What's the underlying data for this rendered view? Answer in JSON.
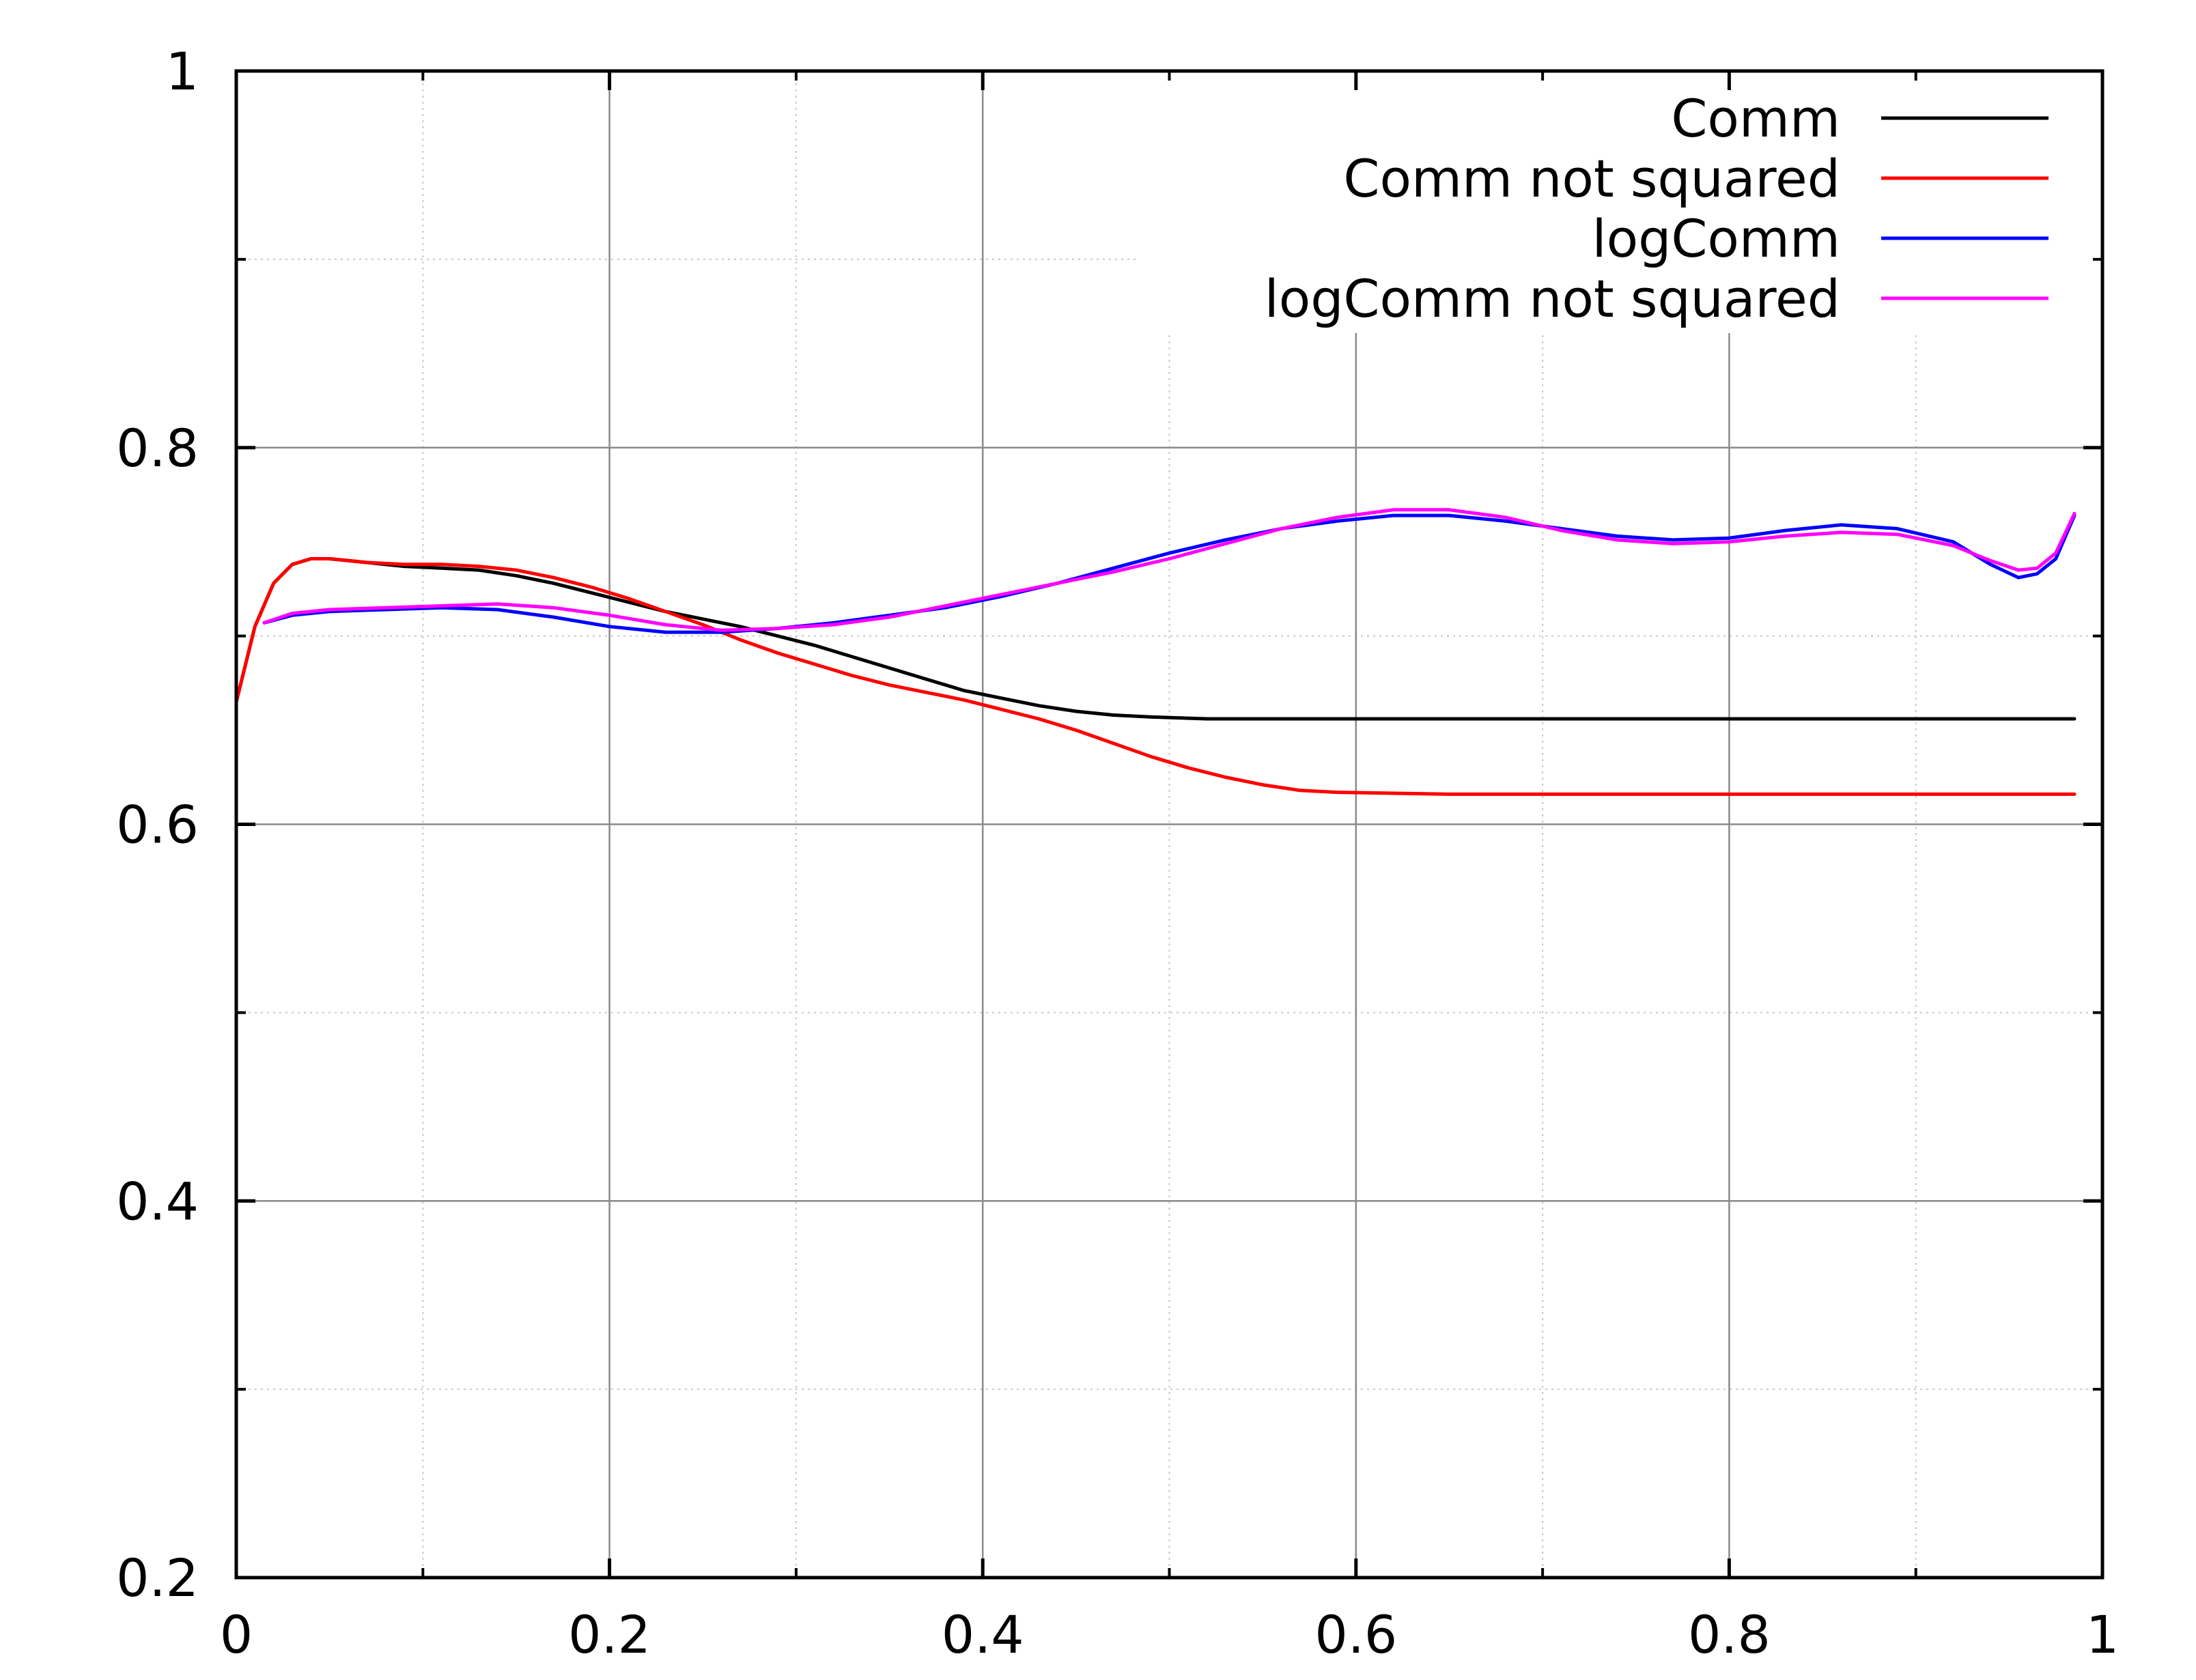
{
  "chart_data": {
    "type": "line",
    "title": "",
    "xlabel": "",
    "ylabel": "",
    "xlim": [
      0,
      1
    ],
    "ylim": [
      0.2,
      1
    ],
    "xticks": [
      0,
      0.2,
      0.4,
      0.6,
      0.8,
      1
    ],
    "xtick_labels": [
      "0",
      "0.2",
      "0.4",
      "0.6",
      "0.8",
      "1"
    ],
    "yticks": [
      0.2,
      0.4,
      0.6,
      0.8,
      1
    ],
    "ytick_labels": [
      "0.2",
      "0.4",
      "0.6",
      "0.8",
      "1"
    ],
    "grid": true,
    "legend_position": "top-right",
    "series": [
      {
        "name": "Comm",
        "color": "#000000",
        "points": [
          [
            0,
            0.665
          ],
          [
            0.01,
            0.705
          ],
          [
            0.02,
            0.728
          ],
          [
            0.03,
            0.738
          ],
          [
            0.04,
            0.741
          ],
          [
            0.05,
            0.741
          ],
          [
            0.07,
            0.739
          ],
          [
            0.09,
            0.737
          ],
          [
            0.11,
            0.736
          ],
          [
            0.13,
            0.735
          ],
          [
            0.15,
            0.732
          ],
          [
            0.17,
            0.728
          ],
          [
            0.19,
            0.723
          ],
          [
            0.21,
            0.718
          ],
          [
            0.23,
            0.713
          ],
          [
            0.25,
            0.709
          ],
          [
            0.27,
            0.705
          ],
          [
            0.29,
            0.7
          ],
          [
            0.31,
            0.695
          ],
          [
            0.33,
            0.689
          ],
          [
            0.35,
            0.683
          ],
          [
            0.37,
            0.677
          ],
          [
            0.39,
            0.671
          ],
          [
            0.41,
            0.667
          ],
          [
            0.43,
            0.663
          ],
          [
            0.45,
            0.66
          ],
          [
            0.47,
            0.658
          ],
          [
            0.49,
            0.657
          ],
          [
            0.52,
            0.656
          ],
          [
            0.56,
            0.656
          ],
          [
            0.6,
            0.656
          ],
          [
            0.7,
            0.656
          ],
          [
            0.8,
            0.656
          ],
          [
            0.9,
            0.656
          ],
          [
            0.985,
            0.656
          ]
        ]
      },
      {
        "name": "Comm not squared",
        "color": "#ff0000",
        "points": [
          [
            0,
            0.665
          ],
          [
            0.01,
            0.705
          ],
          [
            0.02,
            0.728
          ],
          [
            0.03,
            0.738
          ],
          [
            0.04,
            0.741
          ],
          [
            0.05,
            0.741
          ],
          [
            0.07,
            0.739
          ],
          [
            0.09,
            0.738
          ],
          [
            0.11,
            0.738
          ],
          [
            0.13,
            0.737
          ],
          [
            0.15,
            0.735
          ],
          [
            0.17,
            0.731
          ],
          [
            0.19,
            0.726
          ],
          [
            0.21,
            0.72
          ],
          [
            0.23,
            0.713
          ],
          [
            0.25,
            0.706
          ],
          [
            0.27,
            0.698
          ],
          [
            0.29,
            0.691
          ],
          [
            0.31,
            0.685
          ],
          [
            0.33,
            0.679
          ],
          [
            0.35,
            0.674
          ],
          [
            0.37,
            0.67
          ],
          [
            0.39,
            0.666
          ],
          [
            0.41,
            0.661
          ],
          [
            0.43,
            0.656
          ],
          [
            0.45,
            0.65
          ],
          [
            0.47,
            0.643
          ],
          [
            0.49,
            0.636
          ],
          [
            0.51,
            0.63
          ],
          [
            0.53,
            0.625
          ],
          [
            0.55,
            0.621
          ],
          [
            0.57,
            0.618
          ],
          [
            0.59,
            0.617
          ],
          [
            0.62,
            0.6165
          ],
          [
            0.65,
            0.616
          ],
          [
            0.7,
            0.616
          ],
          [
            0.8,
            0.616
          ],
          [
            0.9,
            0.616
          ],
          [
            0.985,
            0.616
          ]
        ]
      },
      {
        "name": "logComm",
        "color": "#0000ff",
        "points": [
          [
            0.015,
            0.707
          ],
          [
            0.03,
            0.711
          ],
          [
            0.05,
            0.713
          ],
          [
            0.08,
            0.714
          ],
          [
            0.11,
            0.715
          ],
          [
            0.14,
            0.714
          ],
          [
            0.17,
            0.71
          ],
          [
            0.2,
            0.705
          ],
          [
            0.23,
            0.702
          ],
          [
            0.26,
            0.702
          ],
          [
            0.29,
            0.704
          ],
          [
            0.32,
            0.707
          ],
          [
            0.35,
            0.711
          ],
          [
            0.38,
            0.715
          ],
          [
            0.41,
            0.721
          ],
          [
            0.44,
            0.728
          ],
          [
            0.47,
            0.736
          ],
          [
            0.5,
            0.744
          ],
          [
            0.53,
            0.751
          ],
          [
            0.56,
            0.757
          ],
          [
            0.59,
            0.761
          ],
          [
            0.62,
            0.764
          ],
          [
            0.65,
            0.764
          ],
          [
            0.68,
            0.761
          ],
          [
            0.71,
            0.757
          ],
          [
            0.74,
            0.753
          ],
          [
            0.77,
            0.751
          ],
          [
            0.8,
            0.752
          ],
          [
            0.83,
            0.756
          ],
          [
            0.86,
            0.759
          ],
          [
            0.89,
            0.757
          ],
          [
            0.92,
            0.75
          ],
          [
            0.94,
            0.738
          ],
          [
            0.955,
            0.731
          ],
          [
            0.965,
            0.733
          ],
          [
            0.975,
            0.741
          ],
          [
            0.985,
            0.764
          ]
        ]
      },
      {
        "name": "logComm not squared",
        "color": "#ff00ff",
        "points": [
          [
            0.015,
            0.707
          ],
          [
            0.03,
            0.712
          ],
          [
            0.05,
            0.714
          ],
          [
            0.08,
            0.715
          ],
          [
            0.11,
            0.716
          ],
          [
            0.14,
            0.717
          ],
          [
            0.17,
            0.715
          ],
          [
            0.2,
            0.711
          ],
          [
            0.23,
            0.706
          ],
          [
            0.26,
            0.703
          ],
          [
            0.29,
            0.704
          ],
          [
            0.32,
            0.706
          ],
          [
            0.35,
            0.71
          ],
          [
            0.38,
            0.716
          ],
          [
            0.41,
            0.722
          ],
          [
            0.44,
            0.728
          ],
          [
            0.47,
            0.734
          ],
          [
            0.5,
            0.741
          ],
          [
            0.53,
            0.749
          ],
          [
            0.56,
            0.757
          ],
          [
            0.59,
            0.763
          ],
          [
            0.62,
            0.767
          ],
          [
            0.65,
            0.767
          ],
          [
            0.68,
            0.763
          ],
          [
            0.71,
            0.756
          ],
          [
            0.74,
            0.751
          ],
          [
            0.77,
            0.749
          ],
          [
            0.8,
            0.75
          ],
          [
            0.83,
            0.753
          ],
          [
            0.86,
            0.755
          ],
          [
            0.89,
            0.754
          ],
          [
            0.92,
            0.748
          ],
          [
            0.94,
            0.74
          ],
          [
            0.955,
            0.735
          ],
          [
            0.965,
            0.736
          ],
          [
            0.975,
            0.744
          ],
          [
            0.985,
            0.765
          ]
        ]
      }
    ]
  }
}
